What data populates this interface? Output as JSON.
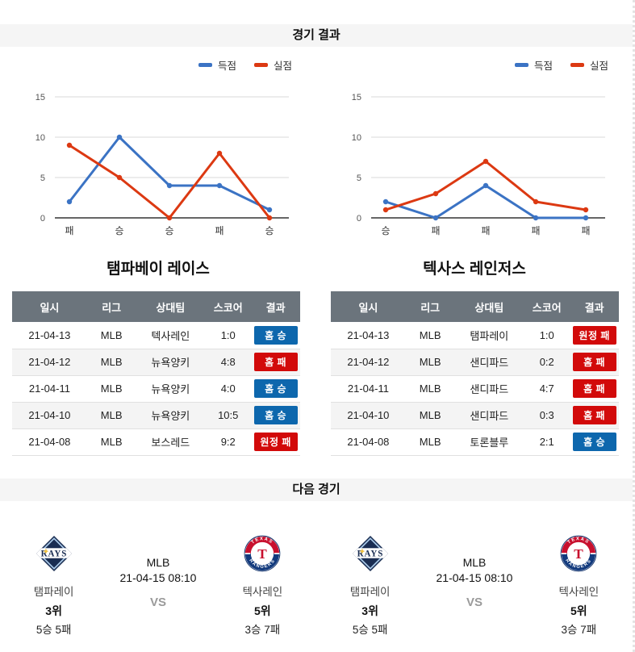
{
  "sections": {
    "results_title": "경기 결과",
    "next_title": "다음 경기"
  },
  "colors": {
    "chart_blue": "#3b73c4",
    "chart_red": "#dc3912",
    "badge_win": "#0d67ad",
    "badge_loss": "#d20a0a",
    "table_header_bg": "#6b747c"
  },
  "chart_data": [
    {
      "type": "line",
      "team": "탬파베이 레이스",
      "categories": [
        "패",
        "승",
        "승",
        "패",
        "승"
      ],
      "series": [
        {
          "name": "득점",
          "color": "#3b73c4",
          "values": [
            2,
            10,
            4,
            4,
            1
          ]
        },
        {
          "name": "실점",
          "color": "#dc3912",
          "values": [
            9,
            5,
            0,
            8,
            0
          ]
        }
      ],
      "ylim": [
        0,
        15
      ],
      "yticks": [
        0,
        5,
        10,
        15
      ],
      "legend_position": "top-right",
      "grid": true
    },
    {
      "type": "line",
      "team": "텍사스 레인저스",
      "categories": [
        "승",
        "패",
        "패",
        "패",
        "패"
      ],
      "series": [
        {
          "name": "득점",
          "color": "#3b73c4",
          "values": [
            2,
            0,
            4,
            0,
            0
          ]
        },
        {
          "name": "실점",
          "color": "#dc3912",
          "values": [
            1,
            3,
            7,
            2,
            1
          ]
        }
      ],
      "ylim": [
        0,
        15
      ],
      "yticks": [
        0,
        5,
        10,
        15
      ],
      "legend_position": "top-right",
      "grid": true
    }
  ],
  "tables": [
    {
      "title": "탬파베이 레이스",
      "headers": [
        "일시",
        "리그",
        "상대팀",
        "스코어",
        "결과"
      ],
      "rows": [
        {
          "date": "21-04-13",
          "league": "MLB",
          "opponent": "텍사레인",
          "score": "1:0",
          "result": "홈 승",
          "result_type": "win"
        },
        {
          "date": "21-04-12",
          "league": "MLB",
          "opponent": "뉴욕양키",
          "score": "4:8",
          "result": "홈 패",
          "result_type": "loss"
        },
        {
          "date": "21-04-11",
          "league": "MLB",
          "opponent": "뉴욕양키",
          "score": "4:0",
          "result": "홈 승",
          "result_type": "win"
        },
        {
          "date": "21-04-10",
          "league": "MLB",
          "opponent": "뉴욕양키",
          "score": "10:5",
          "result": "홈 승",
          "result_type": "win"
        },
        {
          "date": "21-04-08",
          "league": "MLB",
          "opponent": "보스레드",
          "score": "9:2",
          "result": "원정 패",
          "result_type": "loss"
        }
      ]
    },
    {
      "title": "텍사스 레인저스",
      "headers": [
        "일시",
        "리그",
        "상대팀",
        "스코어",
        "결과"
      ],
      "rows": [
        {
          "date": "21-04-13",
          "league": "MLB",
          "opponent": "탬파레이",
          "score": "1:0",
          "result": "원정 패",
          "result_type": "loss"
        },
        {
          "date": "21-04-12",
          "league": "MLB",
          "opponent": "샌디파드",
          "score": "0:2",
          "result": "홈 패",
          "result_type": "loss"
        },
        {
          "date": "21-04-11",
          "league": "MLB",
          "opponent": "샌디파드",
          "score": "4:7",
          "result": "홈 패",
          "result_type": "loss"
        },
        {
          "date": "21-04-10",
          "league": "MLB",
          "opponent": "샌디파드",
          "score": "0:3",
          "result": "홈 패",
          "result_type": "loss"
        },
        {
          "date": "21-04-08",
          "league": "MLB",
          "opponent": "토론블루",
          "score": "2:1",
          "result": "홈 승",
          "result_type": "win"
        }
      ]
    }
  ],
  "logos": {
    "rays_text": "RAYS",
    "rangers_top": "TEXAS",
    "rangers_bottom": "RANGERS",
    "rangers_letter": "T"
  },
  "next_matches": [
    {
      "league": "MLB",
      "datetime": "21-04-15 08:10",
      "vs_label": "VS",
      "home": {
        "name": "탬파레이",
        "rank": "3위",
        "record": "5승 5패"
      },
      "away": {
        "name": "텍사레인",
        "rank": "5위",
        "record": "3승 7패"
      }
    },
    {
      "league": "MLB",
      "datetime": "21-04-15 08:10",
      "vs_label": "VS",
      "home": {
        "name": "탬파레이",
        "rank": "3위",
        "record": "5승 5패"
      },
      "away": {
        "name": "텍사레인",
        "rank": "5위",
        "record": "3승 7패"
      }
    }
  ]
}
